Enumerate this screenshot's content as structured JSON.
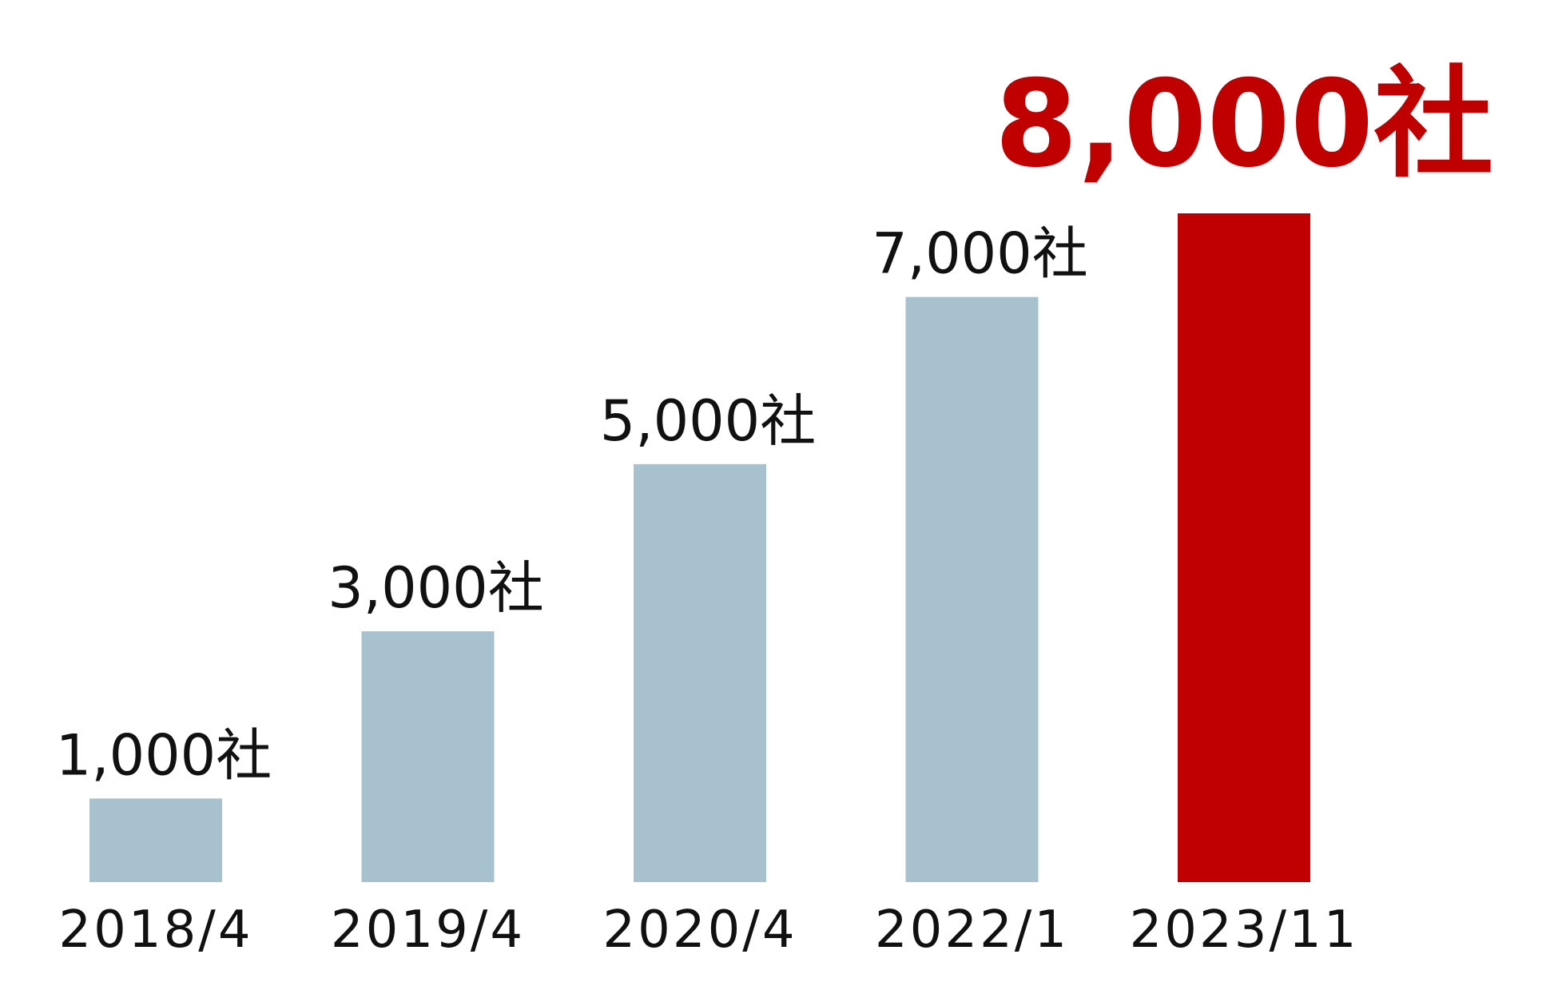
{
  "chart_data": {
    "type": "bar",
    "categories": [
      "2018/4",
      "2019/4",
      "2020/4",
      "2022/1",
      "2023/11"
    ],
    "values": [
      1000,
      3000,
      5000,
      7000,
      8000
    ],
    "value_labels": [
      "1,000社",
      "3,000社",
      "5,000社",
      "7,000社",
      "8,000社"
    ],
    "colors": [
      "#a7c1cf",
      "#a7c1cf",
      "#a7c1cf",
      "#a7c1cf",
      "#c00000"
    ]
  }
}
